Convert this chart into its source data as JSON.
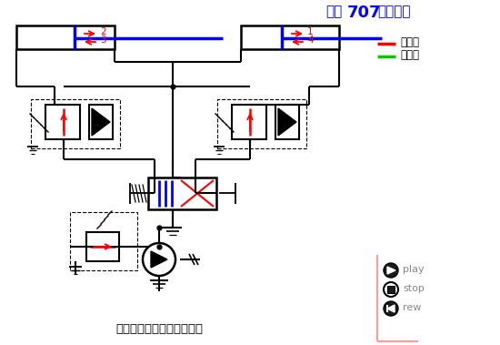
{
  "title_prefix": "化工",
  "title_bold": "707",
  "title_suffix": "剪辑制作",
  "subtitle": "顺序阀控制的顺序动作回路",
  "legend_inlet": "进油路",
  "legend_return": "回油路",
  "bg_color": "#ffffff",
  "blue": "#0000FF",
  "red": "#FF0000",
  "green": "#00CC00",
  "black": "#000000",
  "salmon": "#FF9999",
  "orange_line": "#FF8C69",
  "gray_text": "#888888",
  "label1": "1",
  "label2": "2",
  "label3": "3",
  "label4": "4",
  "play_label": "play",
  "stop_label": "stop",
  "rew_label": "rew"
}
